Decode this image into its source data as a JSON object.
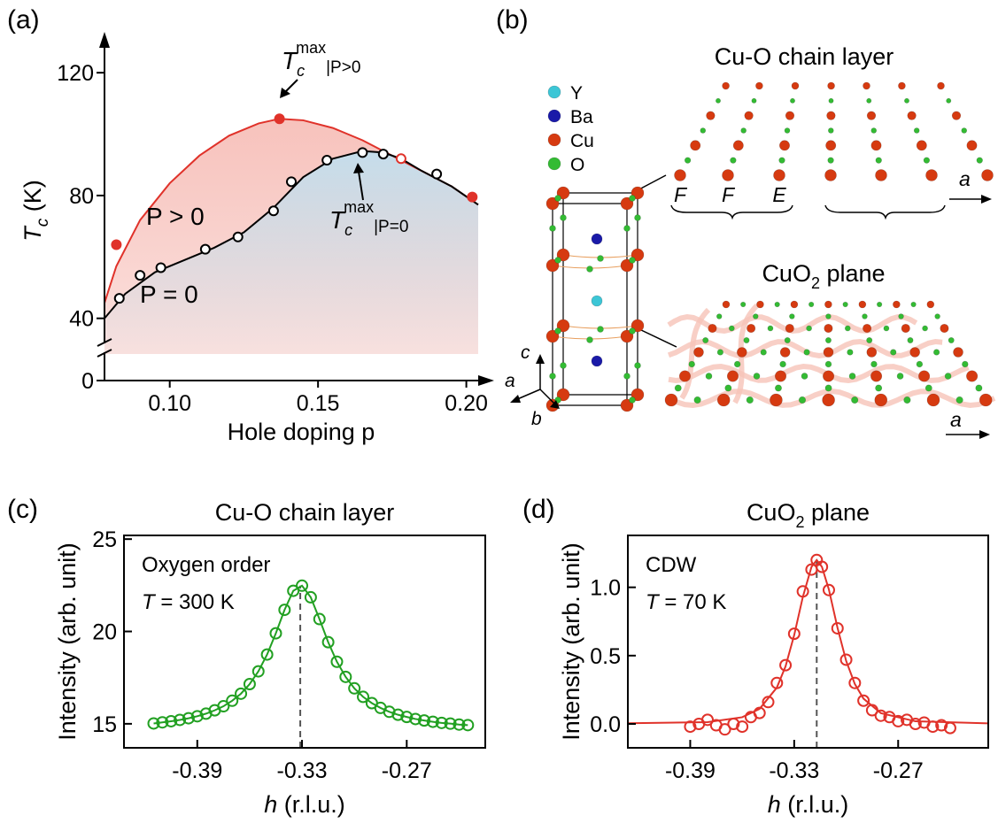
{
  "panels": [
    "(a)",
    "(b)",
    "(c)",
    "(d)"
  ],
  "chart_data": [
    {
      "type": "line",
      "xlabel": "Hole doping p",
      "ylabel": "T",
      "ylabel_sub": "c",
      "ylabel_rest": " (K)",
      "xlim": [
        0.078,
        0.204
      ],
      "ylim": [
        0,
        131
      ],
      "y_break": [
        8,
        33
      ],
      "xticks": [
        {
          "value": 0.1,
          "label": "0.10"
        },
        {
          "value": 0.15,
          "label": "0.15"
        },
        {
          "value": 0.2,
          "label": "0.20"
        }
      ],
      "yticks": [
        0,
        40,
        80,
        120
      ],
      "series": [
        {
          "name": "P > 0",
          "color": "#e0322a",
          "fill": "#f7c2bc",
          "line": true,
          "x": [
            0.078,
            0.082,
            0.09,
            0.1,
            0.11,
            0.12,
            0.13,
            0.137,
            0.145,
            0.155,
            0.165,
            0.175,
            0.185,
            0.195,
            0.204
          ],
          "values": [
            45,
            57,
            72,
            84,
            93,
            99.5,
            103.5,
            105,
            104.5,
            102,
            98,
            93,
            88,
            83,
            77
          ]
        },
        {
          "name": "P = 0",
          "color": "#000000",
          "fill": "#bfe0f0",
          "line": true,
          "x": [
            0.078,
            0.085,
            0.095,
            0.105,
            0.115,
            0.125,
            0.135,
            0.145,
            0.155,
            0.165,
            0.172,
            0.178,
            0.185,
            0.195,
            0.204
          ],
          "values": [
            40,
            48,
            55,
            59,
            63,
            68,
            76,
            86,
            92,
            94.5,
            94,
            92,
            88,
            83,
            77
          ]
        },
        {
          "color": "#e0322a",
          "marker": "filled",
          "x": [
            0.082,
            0.137,
            0.202
          ],
          "values": [
            64,
            105,
            79.5
          ]
        },
        {
          "color": "#e0322a",
          "marker": "open",
          "x": [
            0.178
          ],
          "values": [
            92
          ]
        },
        {
          "color": "#000000",
          "marker": "open",
          "x": [
            0.083,
            0.09,
            0.097,
            0.112,
            0.123,
            0.135,
            0.141,
            0.153,
            0.165,
            0.172,
            0.19
          ],
          "values": [
            46.5,
            54,
            56.5,
            62.5,
            66.5,
            75,
            84.5,
            91.5,
            94,
            93.5,
            87
          ]
        }
      ],
      "annotations": [
        {
          "main": "T",
          "sub": "c",
          "sup": "max",
          "tail": "|P>0"
        },
        {
          "main": "T",
          "sub": "c",
          "sup": "max",
          "tail": "|P=0"
        }
      ]
    },
    {
      "type": "scatter",
      "title": "Cu-O chain layer",
      "xlabel": "h",
      "xlabel_rest": " (r.l.u.)",
      "ylabel": "Intensity (arb. unit)",
      "note": "Oxygen order",
      "note2": "T",
      "note2_rest": " = 300 K",
      "xlim": [
        -0.432,
        -0.225
      ],
      "ylim": [
        13.7,
        25.2
      ],
      "xticks": [
        -0.39,
        -0.33,
        -0.27
      ],
      "yticks": [
        15,
        20,
        25
      ],
      "peak_x": -0.331,
      "series": [
        {
          "color": "#22a022",
          "marker": "open",
          "line": true,
          "x": [
            -0.415,
            -0.41,
            -0.405,
            -0.4,
            -0.395,
            -0.39,
            -0.385,
            -0.38,
            -0.375,
            -0.37,
            -0.365,
            -0.36,
            -0.355,
            -0.35,
            -0.345,
            -0.34,
            -0.335,
            -0.33,
            -0.325,
            -0.32,
            -0.315,
            -0.31,
            -0.305,
            -0.3,
            -0.295,
            -0.29,
            -0.285,
            -0.28,
            -0.275,
            -0.27,
            -0.265,
            -0.26,
            -0.255,
            -0.25,
            -0.245,
            -0.24,
            -0.235
          ],
          "values": [
            15.02,
            15.08,
            15.14,
            15.21,
            15.3,
            15.41,
            15.55,
            15.73,
            15.95,
            16.25,
            16.63,
            17.15,
            17.84,
            18.75,
            19.9,
            21.17,
            22.2,
            22.48,
            21.85,
            20.67,
            19.42,
            18.36,
            17.54,
            16.92,
            16.46,
            16.12,
            15.86,
            15.65,
            15.49,
            15.37,
            15.26,
            15.18,
            15.11,
            15.05,
            15.01,
            14.96,
            14.93
          ]
        }
      ]
    },
    {
      "type": "scatter",
      "title": "CuO",
      "title_sub": "2",
      "title_rest": " plane",
      "xlabel": "h",
      "xlabel_rest": " (r.l.u.)",
      "ylabel": "Intensity (arb. unit)",
      "note": "CDW",
      "note2": "T",
      "note2_rest": " = 70 K",
      "xlim": [
        -0.426,
        -0.218
      ],
      "ylim": [
        -0.175,
        1.38
      ],
      "xticks": [
        -0.39,
        -0.33,
        -0.27
      ],
      "yticks": [
        {
          "value": 0,
          "label": "0.0"
        },
        0.5,
        {
          "value": 1,
          "label": "1.0"
        }
      ],
      "peak_x": -0.317,
      "series": [
        {
          "color": "#e0322a",
          "marker": "open",
          "x": [
            -0.39,
            -0.385,
            -0.38,
            -0.375,
            -0.37,
            -0.365,
            -0.36,
            -0.355,
            -0.35,
            -0.345,
            -0.34,
            -0.335,
            -0.33,
            -0.325,
            -0.32,
            -0.317,
            -0.314,
            -0.31,
            -0.305,
            -0.3,
            -0.295,
            -0.29,
            -0.285,
            -0.28,
            -0.275,
            -0.27,
            -0.265,
            -0.26,
            -0.255,
            -0.25,
            -0.245,
            -0.24
          ],
          "values": [
            -0.02,
            0.0,
            0.03,
            -0.01,
            -0.04,
            0.0,
            -0.02,
            0.05,
            0.08,
            0.16,
            0.3,
            0.43,
            0.66,
            0.97,
            1.13,
            1.2,
            1.15,
            0.98,
            0.7,
            0.47,
            0.3,
            0.17,
            0.1,
            0.06,
            0.05,
            0.02,
            0.03,
            0.0,
            0.01,
            -0.02,
            -0.01,
            -0.03
          ]
        },
        {
          "color": "#e0322a",
          "line": true,
          "x": [
            -0.426,
            -0.38,
            -0.36,
            -0.35,
            -0.34,
            -0.335,
            -0.33,
            -0.325,
            -0.32,
            -0.317,
            -0.314,
            -0.31,
            -0.305,
            -0.3,
            -0.295,
            -0.29,
            -0.28,
            -0.26,
            -0.218
          ],
          "values": [
            0.005,
            0.013,
            0.049,
            0.11,
            0.266,
            0.421,
            0.65,
            0.93,
            1.15,
            1.2,
            1.15,
            0.985,
            0.704,
            0.461,
            0.292,
            0.185,
            0.079,
            0.019,
            0.004
          ]
        }
      ]
    }
  ],
  "diagram": {
    "title_chain": "Cu-O chain layer",
    "title_plane": "CuO",
    "title_plane_sub": "2",
    "title_plane_rest": " plane",
    "legend": [
      {
        "label": "Y",
        "color": "#3cc6d6"
      },
      {
        "label": "Ba",
        "color": "#1a1aa8"
      },
      {
        "label": "Cu",
        "color": "#d63a10"
      },
      {
        "label": "O",
        "color": "#33bb33"
      }
    ],
    "chain_labels": [
      "F",
      "F",
      "E"
    ],
    "axis_a": "a",
    "axis_b": "b",
    "axis_c": "c"
  }
}
